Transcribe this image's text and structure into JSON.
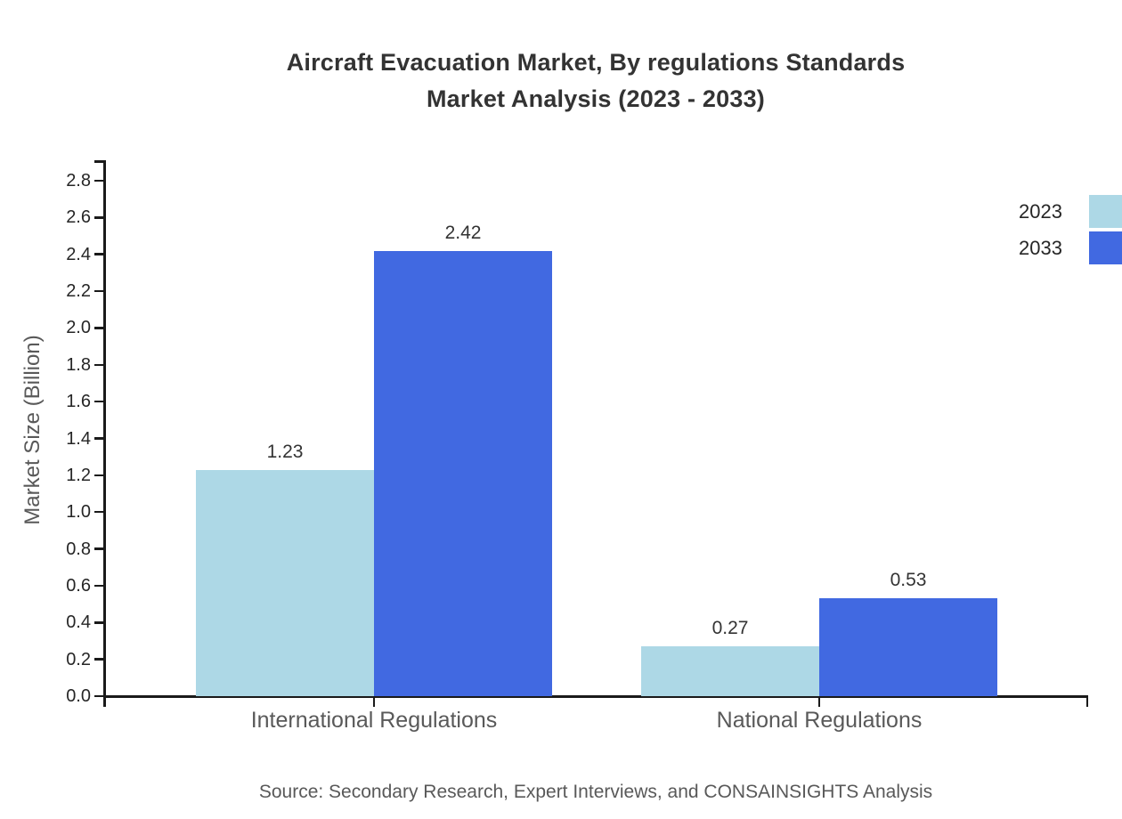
{
  "chart_data": {
    "type": "bar",
    "title": "Aircraft Evacuation Market, By regulations Standards\nMarket Analysis (2023 - 2033)",
    "categories": [
      "International Regulations",
      "National Regulations"
    ],
    "series": [
      {
        "name": "2023",
        "color": "#ADD8E6",
        "values": [
          1.23,
          0.27
        ]
      },
      {
        "name": "2033",
        "color": "#4169E1",
        "values": [
          2.42,
          0.53
        ]
      }
    ],
    "value_labels": [
      [
        "1.23",
        "0.27"
      ],
      [
        "2.42",
        "0.53"
      ]
    ],
    "xlabel": "",
    "ylabel": "Market Size (Billion)",
    "ylim": [
      0.0,
      2.8
    ],
    "ytick_step": 0.2,
    "ytick_labels": [
      "0.0",
      "0.2",
      "0.4",
      "0.6",
      "0.8",
      "1.0",
      "1.2",
      "1.4",
      "1.6",
      "1.8",
      "2.0",
      "2.2",
      "2.4",
      "2.6",
      "2.8"
    ],
    "grid": false,
    "legend_position": "top-right",
    "source_note": "Source: Secondary Research, Expert Interviews, and CONSAINSIGHTS Analysis"
  },
  "colors": {
    "background": "#ffffff",
    "axis": "#1a1a1a",
    "title_text": "#333333",
    "tick_label_text": "#262626",
    "category_label_text": "#595959",
    "source_text": "#595959"
  }
}
